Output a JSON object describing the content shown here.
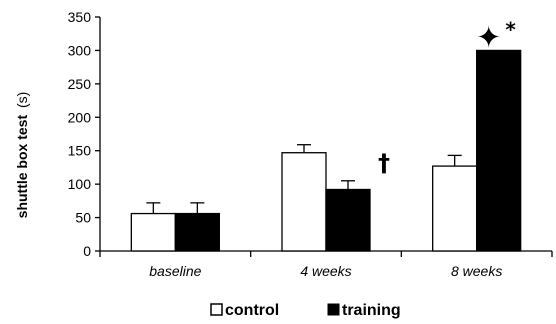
{
  "chart_data": {
    "type": "bar",
    "categories": [
      "baseline",
      "4 weeks",
      "8 weeks"
    ],
    "series": [
      {
        "name": "control",
        "values": [
          56,
          147,
          127
        ],
        "errors": [
          16,
          12,
          16
        ],
        "color": "#ffffff"
      },
      {
        "name": "training",
        "values": [
          56,
          92,
          300
        ],
        "errors": [
          16,
          13,
          0
        ],
        "color": "#000000"
      }
    ],
    "ylabel": "shuttle box test",
    "ylabel_unit": "(s)",
    "ylim": [
      0,
      350
    ],
    "yticks": [
      0,
      50,
      100,
      150,
      200,
      250,
      300,
      350
    ],
    "legend_position": "bottom",
    "annotations": [
      {
        "category": "4 weeks",
        "series": "training",
        "symbol": "†"
      },
      {
        "category": "8 weeks",
        "series": "training",
        "symbol": "✦"
      },
      {
        "category": "8 weeks",
        "series": "training",
        "symbol": "*"
      }
    ]
  }
}
